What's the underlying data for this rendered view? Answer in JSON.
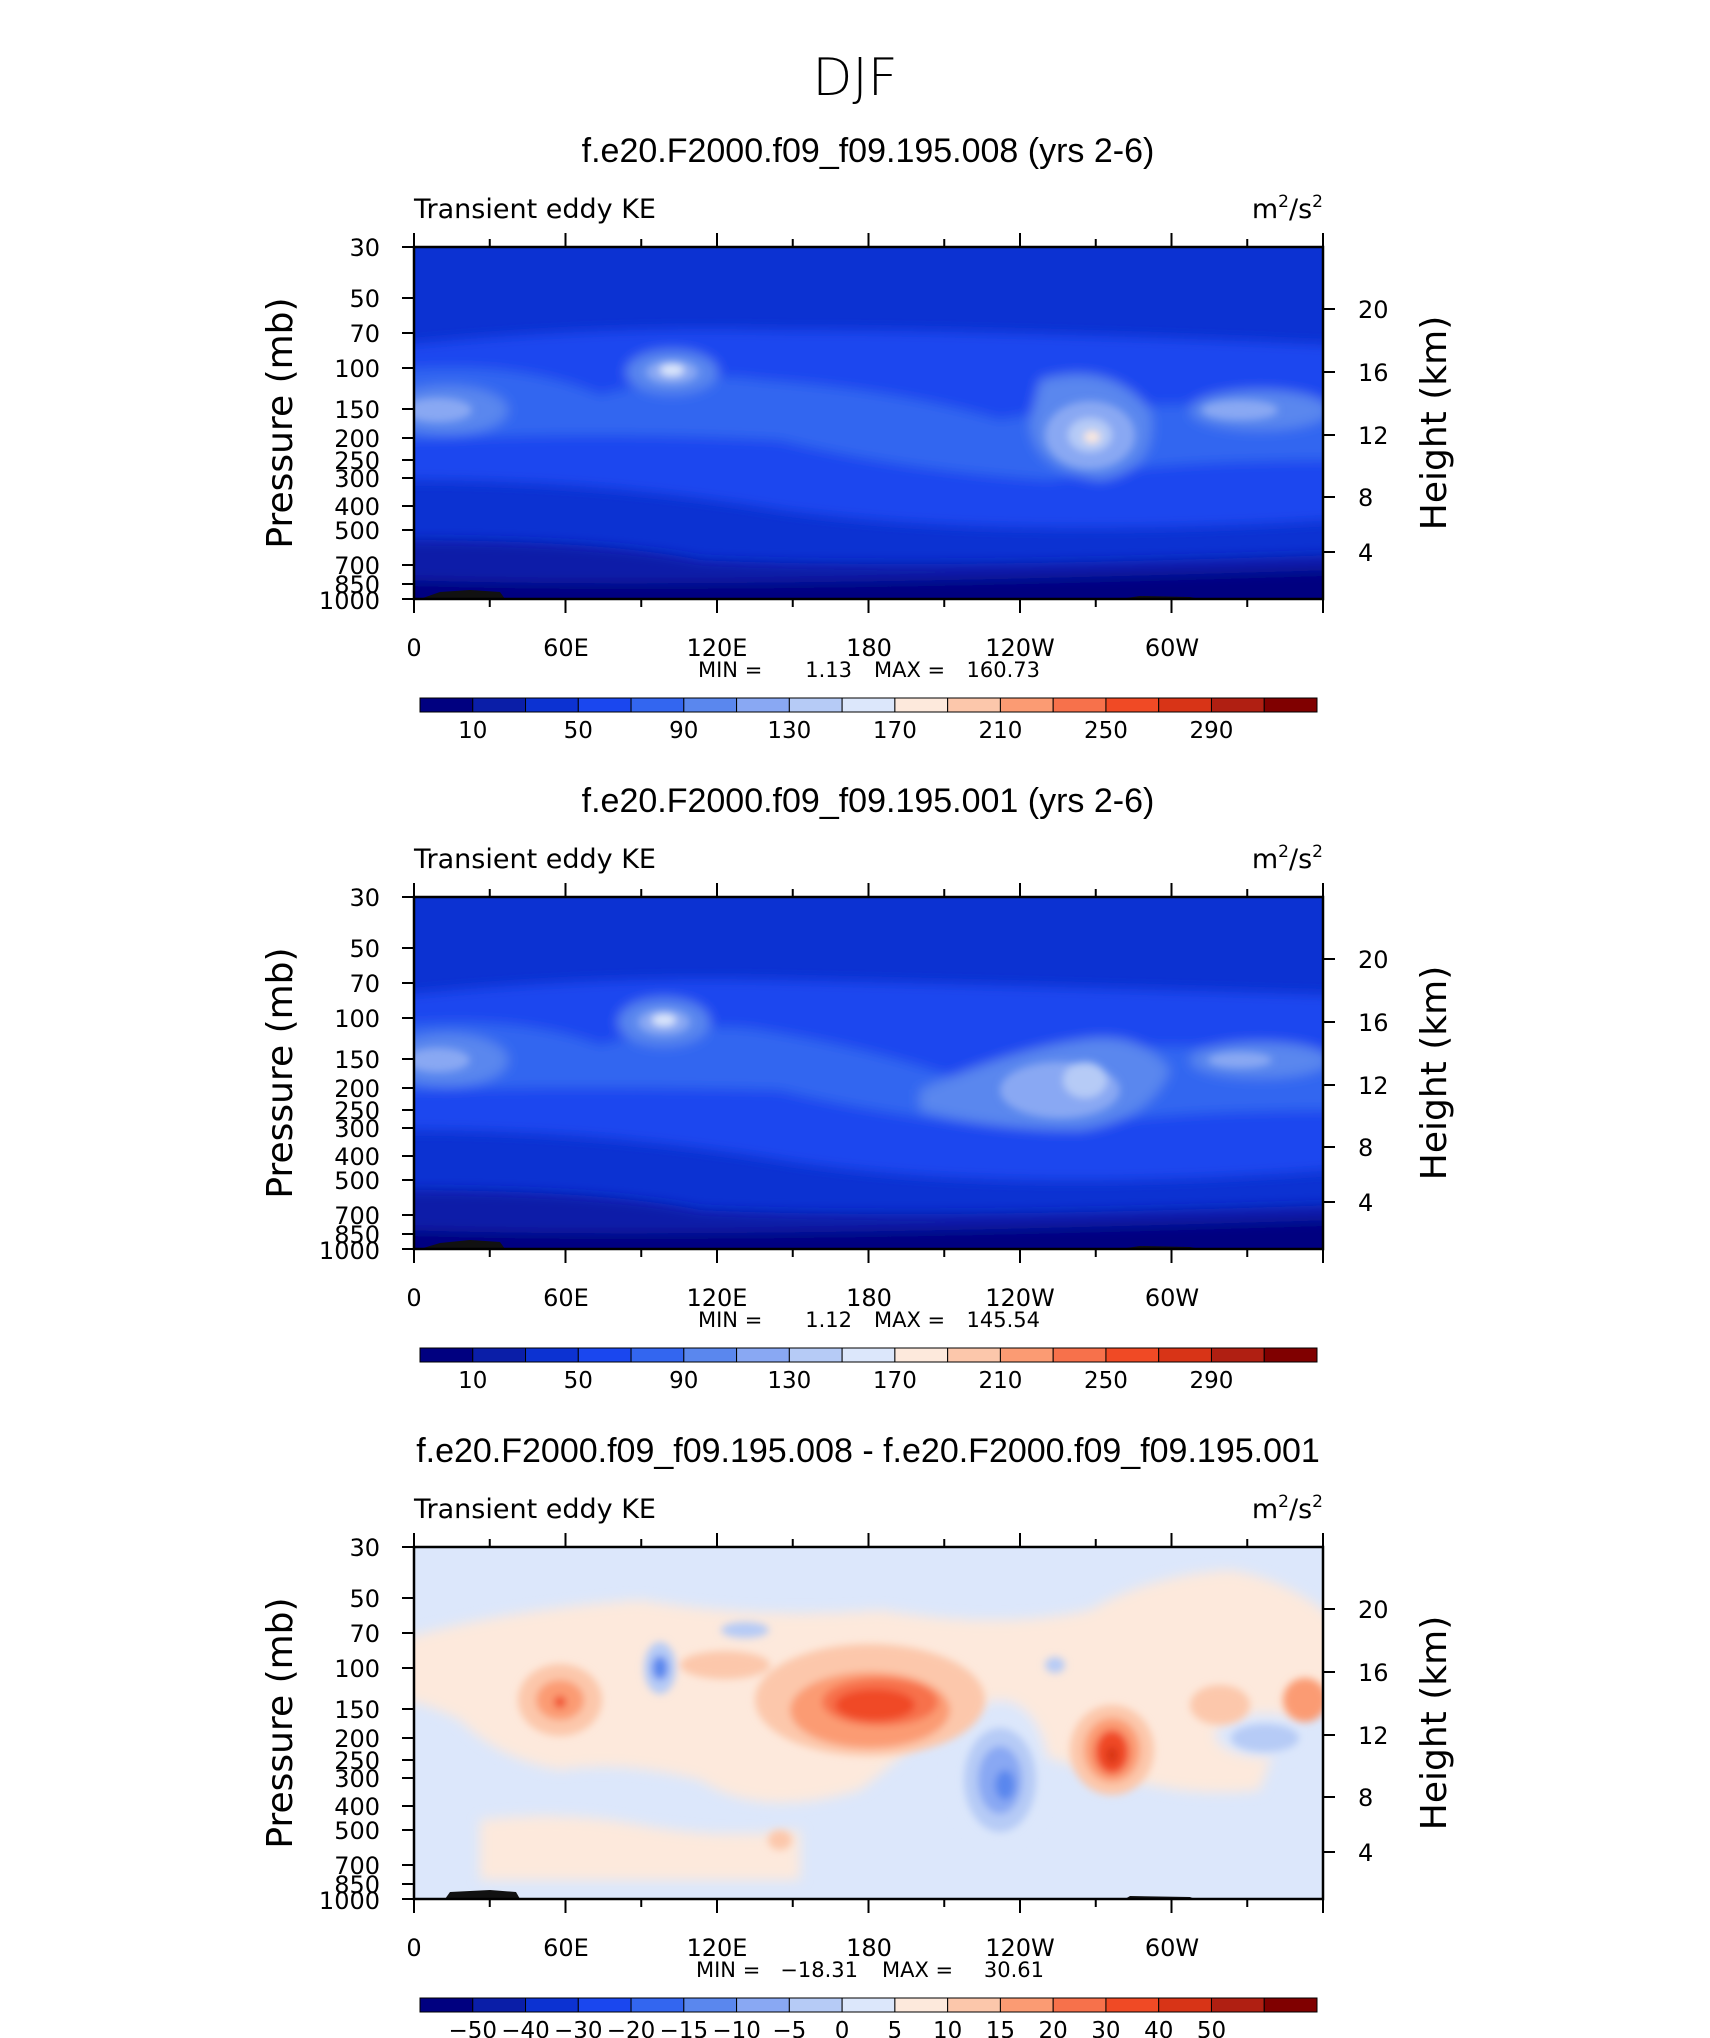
{
  "header": {
    "title": "DJF"
  },
  "colors": {
    "abs_scale": [
      "#000080",
      "#0a1ea8",
      "#0c32d2",
      "#1a47ef",
      "#3366f0",
      "#5a87ee",
      "#89a8f3",
      "#b6cbf6",
      "#dce7fb",
      "#fde9dc",
      "#fcc7ab",
      "#fb9b73",
      "#f7714b",
      "#f04a25",
      "#d83417",
      "#b01f12",
      "#800000"
    ],
    "diff_scale": [
      "#000080",
      "#0a1ea8",
      "#0c32d2",
      "#1a47ef",
      "#3366f0",
      "#5a87ee",
      "#89a8f3",
      "#b6cbf6",
      "#dce7fb",
      "#fde9dc",
      "#fcc7ab",
      "#fb9b73",
      "#f7714b",
      "#f04a25",
      "#d83417",
      "#b01f12",
      "#800000"
    ]
  },
  "chart_data": [
    {
      "type": "contour",
      "title": "f.e20.F2000.f09_f09.195.008 (yrs 2-6)",
      "left_label": "Transient eddy KE",
      "units": {
        "base": "m",
        "sup1": "2",
        "slash": "/s",
        "sup2": "2"
      },
      "xlabels": [
        "0",
        "60E",
        "120E",
        "180",
        "120W",
        "60W"
      ],
      "ylabel": "Pressure (mb)",
      "y2label": "Height (km)",
      "yticks": [
        "30",
        "50",
        "70",
        "100",
        "150",
        "200",
        "250",
        "300",
        "400",
        "500",
        "700",
        "850",
        "1000"
      ],
      "y2ticks": [
        "20",
        "16",
        "12",
        "8",
        "4"
      ],
      "min_label": "MIN =",
      "min": "1.13",
      "max_label": "MAX =",
      "max": "160.73",
      "colorbar_labels": [
        "10",
        "50",
        "90",
        "130",
        "170",
        "210",
        "250",
        "290"
      ],
      "levels": [
        10,
        50,
        90,
        130,
        170,
        210,
        250,
        290
      ]
    },
    {
      "type": "contour",
      "title": "f.e20.F2000.f09_f09.195.001 (yrs 2-6)",
      "left_label": "Transient eddy KE",
      "units": {
        "base": "m",
        "sup1": "2",
        "slash": "/s",
        "sup2": "2"
      },
      "xlabels": [
        "0",
        "60E",
        "120E",
        "180",
        "120W",
        "60W"
      ],
      "ylabel": "Pressure (mb)",
      "y2label": "Height (km)",
      "yticks": [
        "30",
        "50",
        "70",
        "100",
        "150",
        "200",
        "250",
        "300",
        "400",
        "500",
        "700",
        "850",
        "1000"
      ],
      "y2ticks": [
        "20",
        "16",
        "12",
        "8",
        "4"
      ],
      "min_label": "MIN =",
      "min": "1.12",
      "max_label": "MAX =",
      "max": "145.54",
      "colorbar_labels": [
        "10",
        "50",
        "90",
        "130",
        "170",
        "210",
        "250",
        "290"
      ],
      "levels": [
        10,
        50,
        90,
        130,
        170,
        210,
        250,
        290
      ]
    },
    {
      "type": "contour",
      "title": "f.e20.F2000.f09_f09.195.008 - f.e20.F2000.f09_f09.195.001",
      "left_label": "Transient eddy KE",
      "units": {
        "base": "m",
        "sup1": "2",
        "slash": "/s",
        "sup2": "2"
      },
      "xlabels": [
        "0",
        "60E",
        "120E",
        "180",
        "120W",
        "60W"
      ],
      "ylabel": "Pressure (mb)",
      "y2label": "Height (km)",
      "yticks": [
        "30",
        "50",
        "70",
        "100",
        "150",
        "200",
        "250",
        "300",
        "400",
        "500",
        "700",
        "850",
        "1000"
      ],
      "y2ticks": [
        "20",
        "16",
        "12",
        "8",
        "4"
      ],
      "min_label": "MIN =",
      "min": "−18.31",
      "max_label": "MAX =",
      "max": "30.61",
      "colorbar_labels": [
        "−50",
        "−40",
        "−30",
        "−20",
        "−15",
        "−10",
        "−5",
        "0",
        "5",
        "10",
        "15",
        "20",
        "30",
        "40",
        "50"
      ],
      "levels": [
        -50,
        -40,
        -30,
        -20,
        -15,
        -10,
        -5,
        0,
        5,
        10,
        15,
        20,
        30,
        40,
        50
      ]
    }
  ]
}
